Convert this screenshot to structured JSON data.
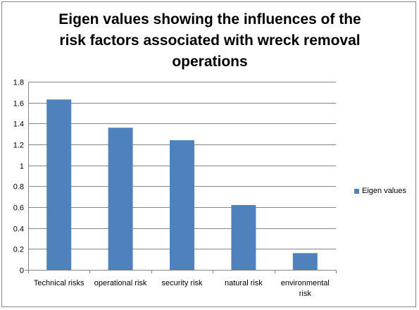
{
  "chart_data": {
    "type": "bar",
    "title": "Eigen values showing the influences of the risk factors associated with wreck removal operations",
    "title_lines": [
      "Eigen values showing the influences of the",
      "risk factors associated with wreck removal",
      "operations"
    ],
    "categories": [
      "Technical risks",
      "operational risk",
      "security risk",
      "natural risk",
      "environmental risk"
    ],
    "category_lines": [
      [
        "Technical risks"
      ],
      [
        "operational risk"
      ],
      [
        "security risk"
      ],
      [
        "natural risk"
      ],
      [
        "environmental",
        "risk"
      ]
    ],
    "series": [
      {
        "name": "Eigen values",
        "values": [
          1.63,
          1.36,
          1.24,
          0.62,
          0.16
        ]
      }
    ],
    "ylim": [
      0,
      1.8
    ],
    "yticks": [
      "0",
      "0.2",
      "0.4",
      "0.6",
      "0.8",
      "1",
      "1.2",
      "1.4",
      "1.6",
      "1.8"
    ],
    "xlabel": "",
    "ylabel": "",
    "grid": true,
    "legend_position": "right",
    "bar_color": "#4f81bd",
    "grid_color": "#868686"
  }
}
